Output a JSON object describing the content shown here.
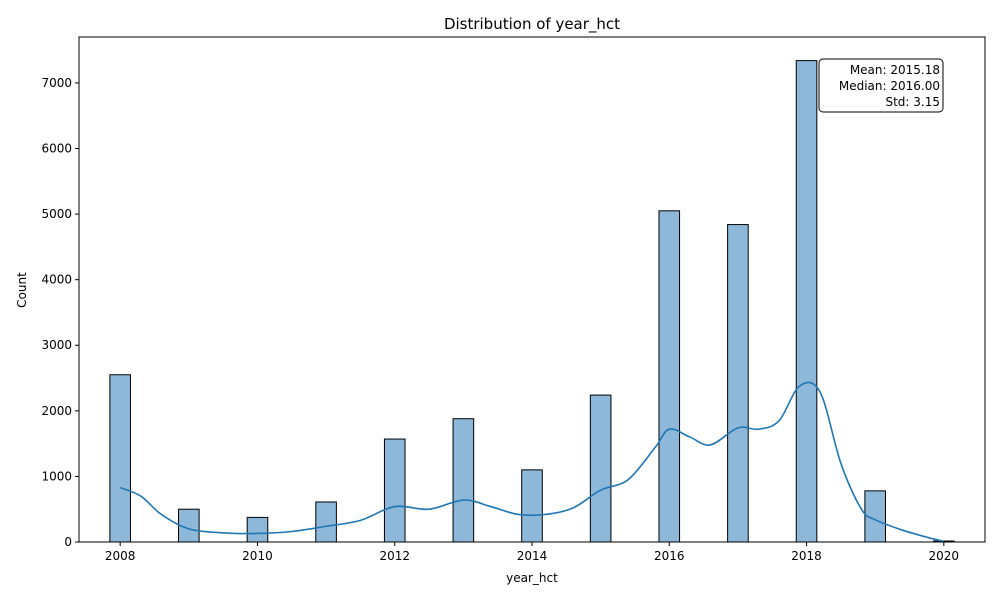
{
  "chart_data": {
    "type": "bar",
    "title": "Distribution of year_hct",
    "xlabel": "year_hct",
    "ylabel": "Count",
    "xlim": [
      2007.4,
      2020.6
    ],
    "ylim": [
      0,
      7700
    ],
    "xticks": [
      2008,
      2010,
      2012,
      2014,
      2016,
      2018,
      2020
    ],
    "yticks": [
      0,
      1000,
      2000,
      3000,
      4000,
      5000,
      6000,
      7000
    ],
    "bin_width": 0.3,
    "bins": [
      {
        "x": 2008,
        "count": 2550
      },
      {
        "x": 2009,
        "count": 500
      },
      {
        "x": 2010,
        "count": 375
      },
      {
        "x": 2011,
        "count": 610
      },
      {
        "x": 2012,
        "count": 1570
      },
      {
        "x": 2013,
        "count": 1880
      },
      {
        "x": 2014,
        "count": 1100
      },
      {
        "x": 2015,
        "count": 2240
      },
      {
        "x": 2016,
        "count": 5050
      },
      {
        "x": 2017,
        "count": 4840
      },
      {
        "x": 2018,
        "count": 7340
      },
      {
        "x": 2019,
        "count": 780
      },
      {
        "x": 2020,
        "count": 15
      }
    ],
    "kde": {
      "x": [
        2008.0,
        2008.3,
        2008.6,
        2009.0,
        2009.5,
        2010.0,
        2010.5,
        2011.0,
        2011.5,
        2012.0,
        2012.5,
        2013.0,
        2013.4,
        2013.8,
        2014.2,
        2014.6,
        2015.0,
        2015.4,
        2015.8,
        2016.0,
        2016.3,
        2016.6,
        2017.0,
        2017.3,
        2017.6,
        2017.9,
        2018.2,
        2018.5,
        2018.8,
        2019.0,
        2019.4,
        2019.8,
        2020.0
      ],
      "y": [
        830,
        700,
        420,
        200,
        140,
        130,
        160,
        240,
        330,
        540,
        500,
        640,
        540,
        420,
        420,
        520,
        790,
        950,
        1450,
        1720,
        1600,
        1480,
        1740,
        1720,
        1850,
        2380,
        2280,
        1200,
        500,
        340,
        180,
        60,
        10
      ]
    },
    "bar_color": "#8db8da",
    "bar_edge_color": "#000000",
    "kde_color": "#1f77b4",
    "grid": false,
    "legend": "none",
    "stats_box": {
      "placement": "top-right",
      "lines": [
        "Mean: 2015.18",
        "Median: 2016.00",
        "Std: 3.15"
      ]
    }
  }
}
